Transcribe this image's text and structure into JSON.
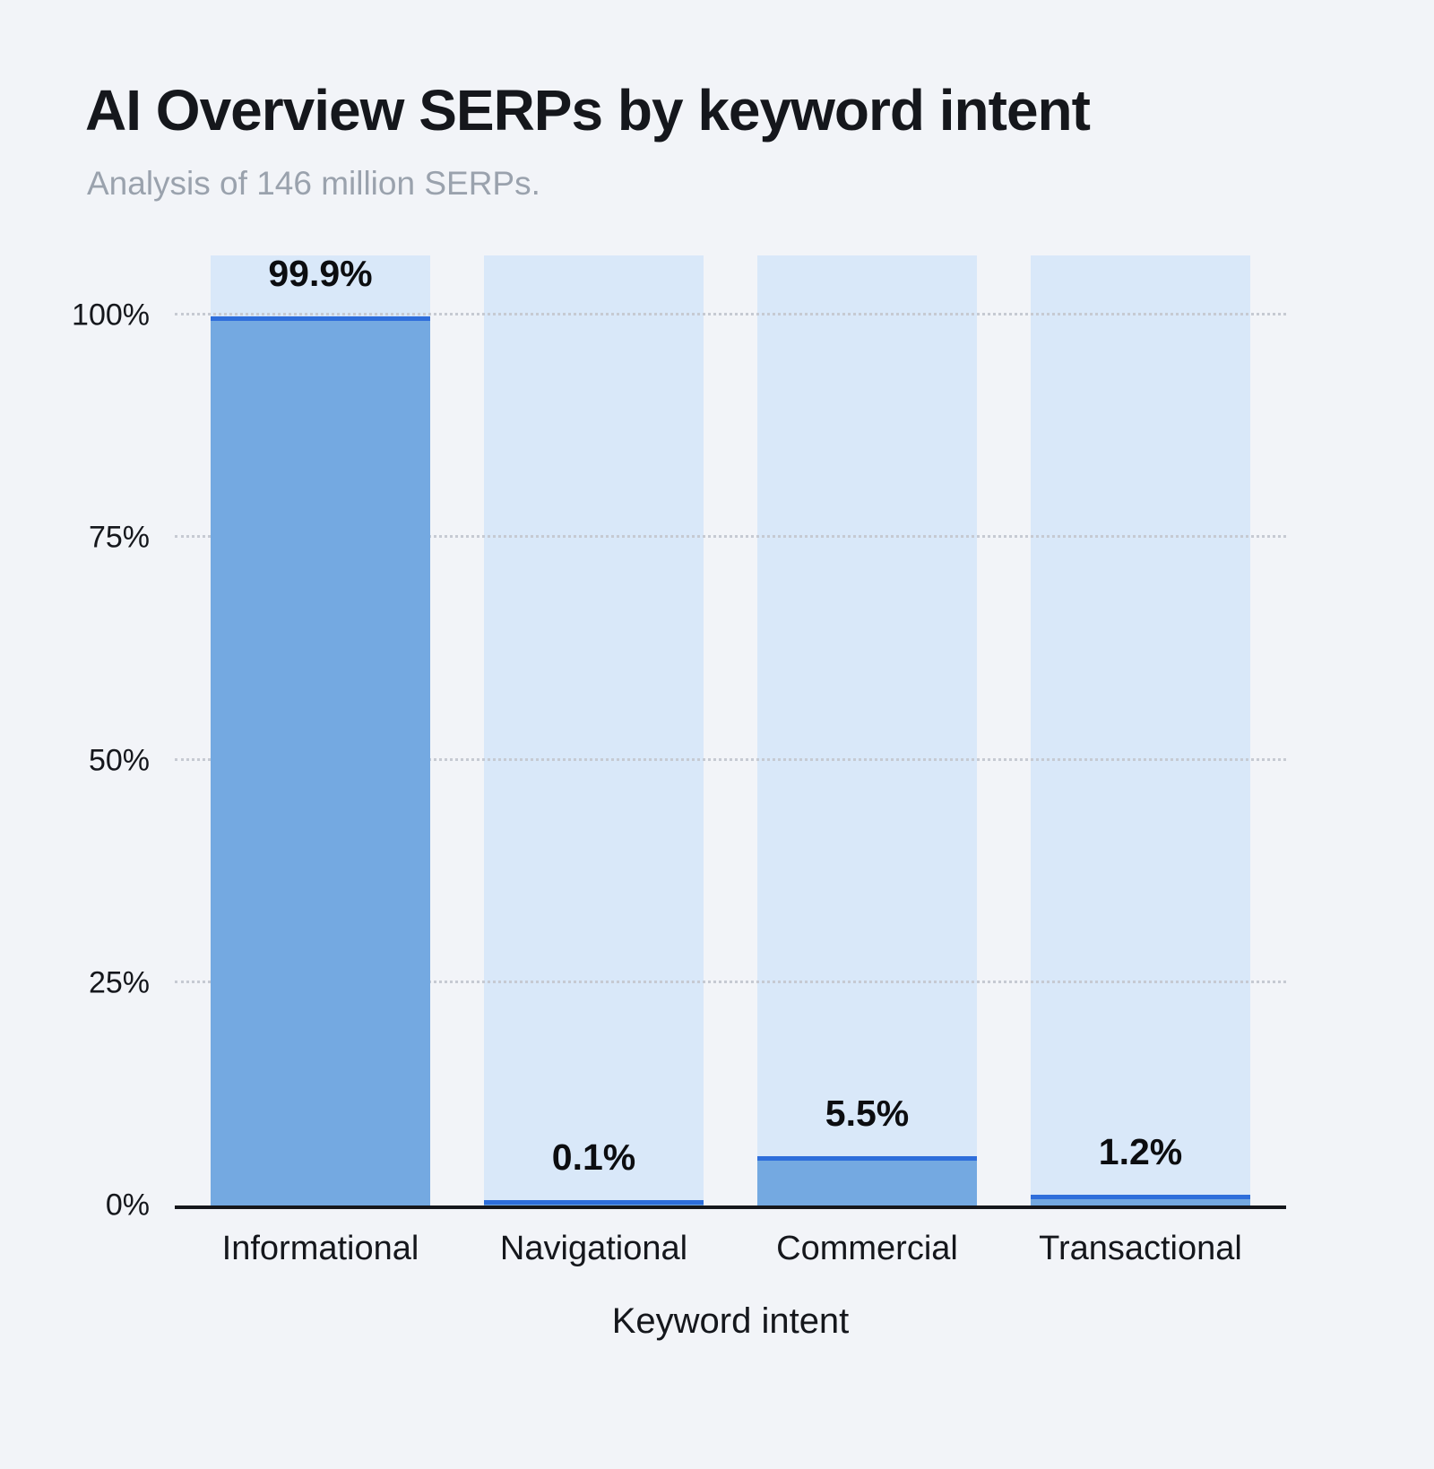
{
  "chart_data": {
    "type": "bar",
    "title": "AI Overview SERPs by keyword intent",
    "subtitle": "Analysis of 146 million SERPs.",
    "xlabel": "Keyword intent",
    "ylabel": "",
    "categories": [
      "Informational",
      "Navigational",
      "Commercial",
      "Transactional"
    ],
    "values": [
      99.9,
      0.1,
      5.5,
      1.2
    ],
    "value_labels": [
      "99.9%",
      "0.1%",
      "5.5%",
      "1.2%"
    ],
    "ylim": [
      0,
      100
    ],
    "yticks": [
      {
        "value": 0,
        "label": "0%"
      },
      {
        "value": 25,
        "label": "25%"
      },
      {
        "value": 50,
        "label": "50%"
      },
      {
        "value": 75,
        "label": "75%"
      },
      {
        "value": 100,
        "label": "100%"
      }
    ],
    "grid": "horizontal-dotted",
    "legend": "none",
    "colors": {
      "page_background": "#f2f4f8",
      "column_background": "#d9e8f9",
      "bar_fill": "#74a9e1",
      "bar_top_line": "#2e6edb",
      "gridline": "#c6cad2",
      "axis_line": "#15171c",
      "title_text": "#15171c",
      "subtitle_text": "#9aa2ad",
      "data_label_text": "#0c0d10"
    }
  }
}
